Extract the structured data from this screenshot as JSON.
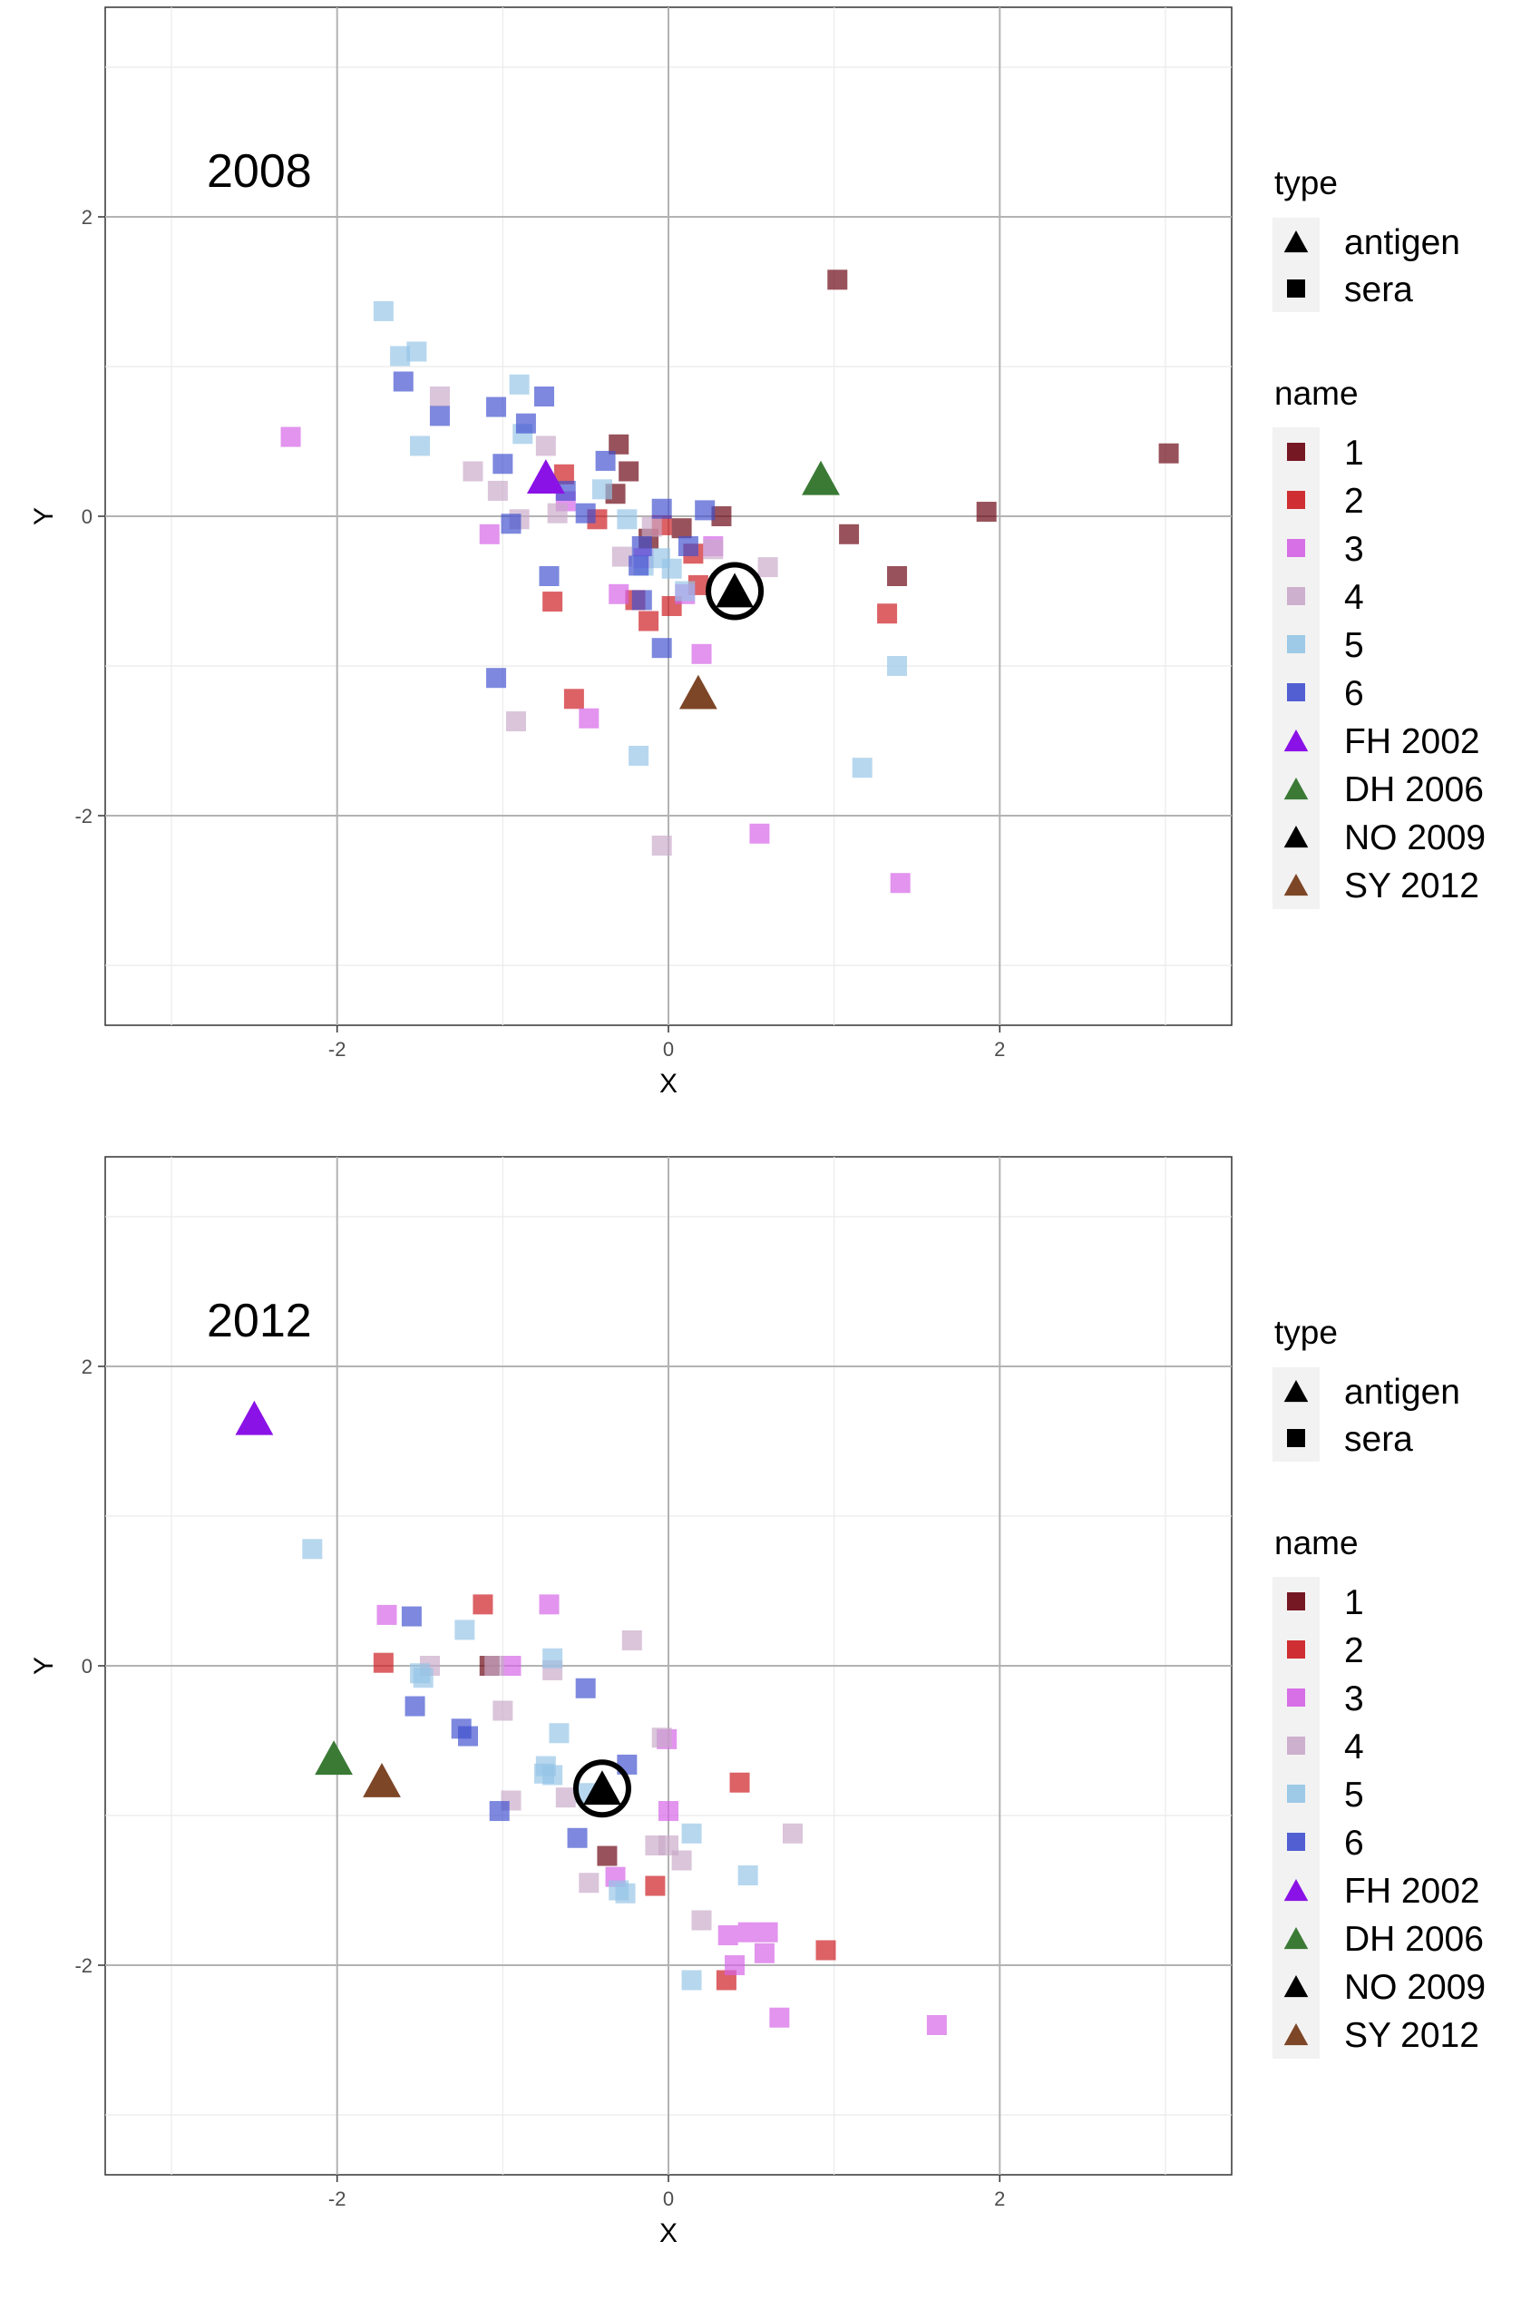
{
  "chart_data": [
    {
      "type": "scatter",
      "annotation": "2008",
      "xlabel": "X",
      "ylabel": "Y",
      "xlim": [
        -3.4,
        3.4
      ],
      "ylim": [
        -3.4,
        3.4
      ],
      "x_ticks": [
        -2,
        0,
        2
      ],
      "y_ticks": [
        -2,
        0,
        2
      ],
      "grid": true,
      "legend_position": "right",
      "legend_type": {
        "title": "type",
        "items": [
          {
            "label": "antigen",
            "shape": "triangle"
          },
          {
            "label": "sera",
            "shape": "square"
          }
        ]
      },
      "legend_name": {
        "title": "name",
        "items": [
          {
            "label": "1",
            "shape": "square",
            "color": "#67000d"
          },
          {
            "label": "2",
            "shape": "square",
            "color": "#cb181d"
          },
          {
            "label": "3",
            "shape": "square",
            "color": "#d462e6"
          },
          {
            "label": "4",
            "shape": "square",
            "color": "#c9a9c9"
          },
          {
            "label": "5",
            "shape": "square",
            "color": "#95c4e6"
          },
          {
            "label": "6",
            "shape": "square",
            "color": "#3f4fcf"
          },
          {
            "label": "FH 2002",
            "shape": "triangle",
            "color": "#8a12e6"
          },
          {
            "label": "DH 2006",
            "shape": "triangle",
            "color": "#3a7a35"
          },
          {
            "label": "NO 2009",
            "shape": "triangle",
            "color": "#000000"
          },
          {
            "label": "SY 2012",
            "shape": "triangle",
            "color": "#7d4627"
          }
        ]
      },
      "series": [
        {
          "name": "1",
          "type": "sera",
          "points": [
            [
              1.02,
              1.58
            ],
            [
              3.02,
              0.42
            ],
            [
              1.92,
              0.03
            ],
            [
              1.09,
              -0.12
            ],
            [
              1.38,
              -0.4
            ],
            [
              -0.3,
              0.48
            ],
            [
              -0.24,
              0.3
            ],
            [
              -0.32,
              0.15
            ],
            [
              0.32,
              0.0
            ],
            [
              0.08,
              -0.08
            ],
            [
              -0.12,
              -0.15
            ]
          ]
        },
        {
          "name": "2",
          "type": "sera",
          "points": [
            [
              -0.63,
              0.28
            ],
            [
              -0.43,
              -0.02
            ],
            [
              -0.7,
              -0.57
            ],
            [
              -0.57,
              -1.22
            ],
            [
              -0.2,
              -0.56
            ],
            [
              -0.12,
              -0.7
            ],
            [
              0.02,
              -0.6
            ],
            [
              0.15,
              -0.25
            ],
            [
              0.18,
              -0.46
            ],
            [
              1.32,
              -0.65
            ],
            [
              -0.04,
              -0.06
            ]
          ]
        },
        {
          "name": "3",
          "type": "sera",
          "points": [
            [
              -2.28,
              0.53
            ],
            [
              -1.08,
              -0.12
            ],
            [
              -0.48,
              -1.35
            ],
            [
              -0.3,
              -0.52
            ],
            [
              0.2,
              -0.92
            ],
            [
              0.55,
              -2.12
            ],
            [
              1.4,
              -2.45
            ],
            [
              0.27,
              -0.2
            ],
            [
              -0.15,
              -0.28
            ],
            [
              -0.62,
              0.1
            ],
            [
              0.1,
              -0.52
            ]
          ]
        },
        {
          "name": "4",
          "type": "sera",
          "points": [
            [
              -1.38,
              0.8
            ],
            [
              -1.18,
              0.3
            ],
            [
              -1.03,
              0.17
            ],
            [
              -0.74,
              0.47
            ],
            [
              -0.9,
              -0.02
            ],
            [
              -0.67,
              0.02
            ],
            [
              -0.1,
              -0.07
            ],
            [
              0.6,
              -0.34
            ],
            [
              0.27,
              -0.22
            ],
            [
              -0.92,
              -1.37
            ],
            [
              -0.04,
              -2.2
            ],
            [
              -0.28,
              -0.27
            ]
          ]
        },
        {
          "name": "5",
          "type": "sera",
          "points": [
            [
              -1.72,
              1.37
            ],
            [
              -1.62,
              1.07
            ],
            [
              -1.52,
              1.1
            ],
            [
              -1.5,
              0.47
            ],
            [
              -0.9,
              0.88
            ],
            [
              -0.88,
              0.55
            ],
            [
              -0.4,
              0.18
            ],
            [
              -0.15,
              -0.33
            ],
            [
              0.02,
              -0.35
            ],
            [
              0.1,
              -0.5
            ],
            [
              1.17,
              -1.68
            ],
            [
              1.38,
              -1.0
            ],
            [
              -0.18,
              -1.6
            ],
            [
              -0.05,
              -0.28
            ],
            [
              -0.25,
              -0.02
            ]
          ]
        },
        {
          "name": "6",
          "type": "sera",
          "points": [
            [
              -1.6,
              0.9
            ],
            [
              -1.38,
              0.67
            ],
            [
              -1.04,
              0.73
            ],
            [
              -1.0,
              0.35
            ],
            [
              -0.86,
              0.62
            ],
            [
              -0.75,
              0.8
            ],
            [
              -0.62,
              0.17
            ],
            [
              -0.5,
              0.02
            ],
            [
              -0.72,
              -0.4
            ],
            [
              -0.38,
              0.37
            ],
            [
              -0.16,
              -0.2
            ],
            [
              -0.18,
              -0.33
            ],
            [
              -0.04,
              0.05
            ],
            [
              0.22,
              0.04
            ],
            [
              0.12,
              -0.2
            ],
            [
              -0.04,
              -0.88
            ],
            [
              -1.04,
              -1.08
            ],
            [
              -0.95,
              -0.05
            ],
            [
              -0.16,
              -0.56
            ]
          ]
        },
        {
          "name": "FH 2002",
          "type": "antigen",
          "points": [
            [
              -0.74,
              0.26
            ]
          ]
        },
        {
          "name": "DH 2006",
          "type": "antigen",
          "points": [
            [
              0.92,
              0.25
            ]
          ]
        },
        {
          "name": "NO 2009",
          "type": "antigen",
          "circled": true,
          "points": [
            [
              0.4,
              -0.5
            ]
          ]
        },
        {
          "name": "SY 2012",
          "type": "antigen",
          "points": [
            [
              0.18,
              -1.18
            ]
          ]
        }
      ]
    },
    {
      "type": "scatter",
      "annotation": "2012",
      "xlabel": "X",
      "ylabel": "Y",
      "xlim": [
        -3.4,
        3.4
      ],
      "ylim": [
        -3.4,
        3.4
      ],
      "x_ticks": [
        -2,
        0,
        2
      ],
      "y_ticks": [
        -2,
        0,
        2
      ],
      "grid": true,
      "legend_position": "right",
      "legend_type": {
        "title": "type",
        "items": [
          {
            "label": "antigen",
            "shape": "triangle"
          },
          {
            "label": "sera",
            "shape": "square"
          }
        ]
      },
      "legend_name": {
        "title": "name",
        "items": [
          {
            "label": "1",
            "shape": "square",
            "color": "#67000d"
          },
          {
            "label": "2",
            "shape": "square",
            "color": "#cb181d"
          },
          {
            "label": "3",
            "shape": "square",
            "color": "#d462e6"
          },
          {
            "label": "4",
            "shape": "square",
            "color": "#c9a9c9"
          },
          {
            "label": "5",
            "shape": "square",
            "color": "#95c4e6"
          },
          {
            "label": "6",
            "shape": "square",
            "color": "#3f4fcf"
          },
          {
            "label": "FH 2002",
            "shape": "triangle",
            "color": "#8a12e6"
          },
          {
            "label": "DH 2006",
            "shape": "triangle",
            "color": "#3a7a35"
          },
          {
            "label": "NO 2009",
            "shape": "triangle",
            "color": "#000000"
          },
          {
            "label": "SY 2012",
            "shape": "triangle",
            "color": "#7d4627"
          }
        ]
      },
      "series": [
        {
          "name": "1",
          "type": "sera",
          "points": [
            [
              -0.37,
              -1.27
            ],
            [
              -1.08,
              0.0
            ]
          ]
        },
        {
          "name": "2",
          "type": "sera",
          "points": [
            [
              -1.12,
              0.41
            ],
            [
              -1.72,
              0.02
            ],
            [
              0.43,
              -0.78
            ],
            [
              0.95,
              -1.9
            ],
            [
              -0.08,
              -1.47
            ],
            [
              0.35,
              -2.1
            ]
          ]
        },
        {
          "name": "3",
          "type": "sera",
          "points": [
            [
              -1.7,
              0.34
            ],
            [
              -0.72,
              0.41
            ],
            [
              -0.95,
              0.0
            ],
            [
              -0.01,
              -0.49
            ],
            [
              0.0,
              -0.97
            ],
            [
              0.36,
              -1.8
            ],
            [
              0.4,
              -2.0
            ],
            [
              0.48,
              -1.78
            ],
            [
              0.6,
              -1.78
            ],
            [
              0.67,
              -2.35
            ],
            [
              1.62,
              -2.4
            ],
            [
              -0.32,
              -1.41
            ],
            [
              0.58,
              -1.92
            ]
          ]
        },
        {
          "name": "4",
          "type": "sera",
          "points": [
            [
              -0.22,
              0.17
            ],
            [
              -1.44,
              0.0
            ],
            [
              -1.05,
              0.0
            ],
            [
              -1.0,
              -0.3
            ],
            [
              -0.95,
              -0.9
            ],
            [
              -0.7,
              -0.03
            ],
            [
              -0.62,
              -0.88
            ],
            [
              -0.48,
              -1.45
            ],
            [
              -0.08,
              -1.2
            ],
            [
              0.0,
              -1.2
            ],
            [
              0.08,
              -1.3
            ],
            [
              0.2,
              -1.7
            ],
            [
              0.75,
              -1.12
            ],
            [
              -0.04,
              -0.48
            ]
          ]
        },
        {
          "name": "5",
          "type": "sera",
          "points": [
            [
              -2.15,
              0.78
            ],
            [
              -1.23,
              0.24
            ],
            [
              -1.5,
              -0.05
            ],
            [
              -1.48,
              -0.08
            ],
            [
              -0.7,
              0.05
            ],
            [
              -0.75,
              -0.72
            ],
            [
              -0.74,
              -0.67
            ],
            [
              -0.66,
              -0.45
            ],
            [
              -0.5,
              -0.85
            ],
            [
              -0.3,
              -1.5
            ],
            [
              0.14,
              -1.12
            ],
            [
              0.48,
              -1.4
            ],
            [
              0.14,
              -2.1
            ],
            [
              -0.26,
              -1.52
            ],
            [
              -0.7,
              -0.73
            ]
          ]
        },
        {
          "name": "6",
          "type": "sera",
          "points": [
            [
              -1.55,
              0.33
            ],
            [
              -1.53,
              -0.27
            ],
            [
              -1.25,
              -0.42
            ],
            [
              -1.21,
              -0.47
            ],
            [
              -1.02,
              -0.97
            ],
            [
              -0.5,
              -0.15
            ],
            [
              -0.55,
              -1.15
            ],
            [
              -0.25,
              -0.66
            ]
          ]
        },
        {
          "name": "FH 2002",
          "type": "antigen",
          "points": [
            [
              -2.5,
              1.65
            ]
          ]
        },
        {
          "name": "DH 2006",
          "type": "antigen",
          "points": [
            [
              -2.02,
              -0.62
            ]
          ]
        },
        {
          "name": "NO 2009",
          "type": "antigen",
          "circled": true,
          "points": [
            [
              -0.4,
              -0.82
            ]
          ]
        },
        {
          "name": "SY 2012",
          "type": "antigen",
          "points": [
            [
              -1.73,
              -0.77
            ]
          ]
        }
      ]
    }
  ]
}
